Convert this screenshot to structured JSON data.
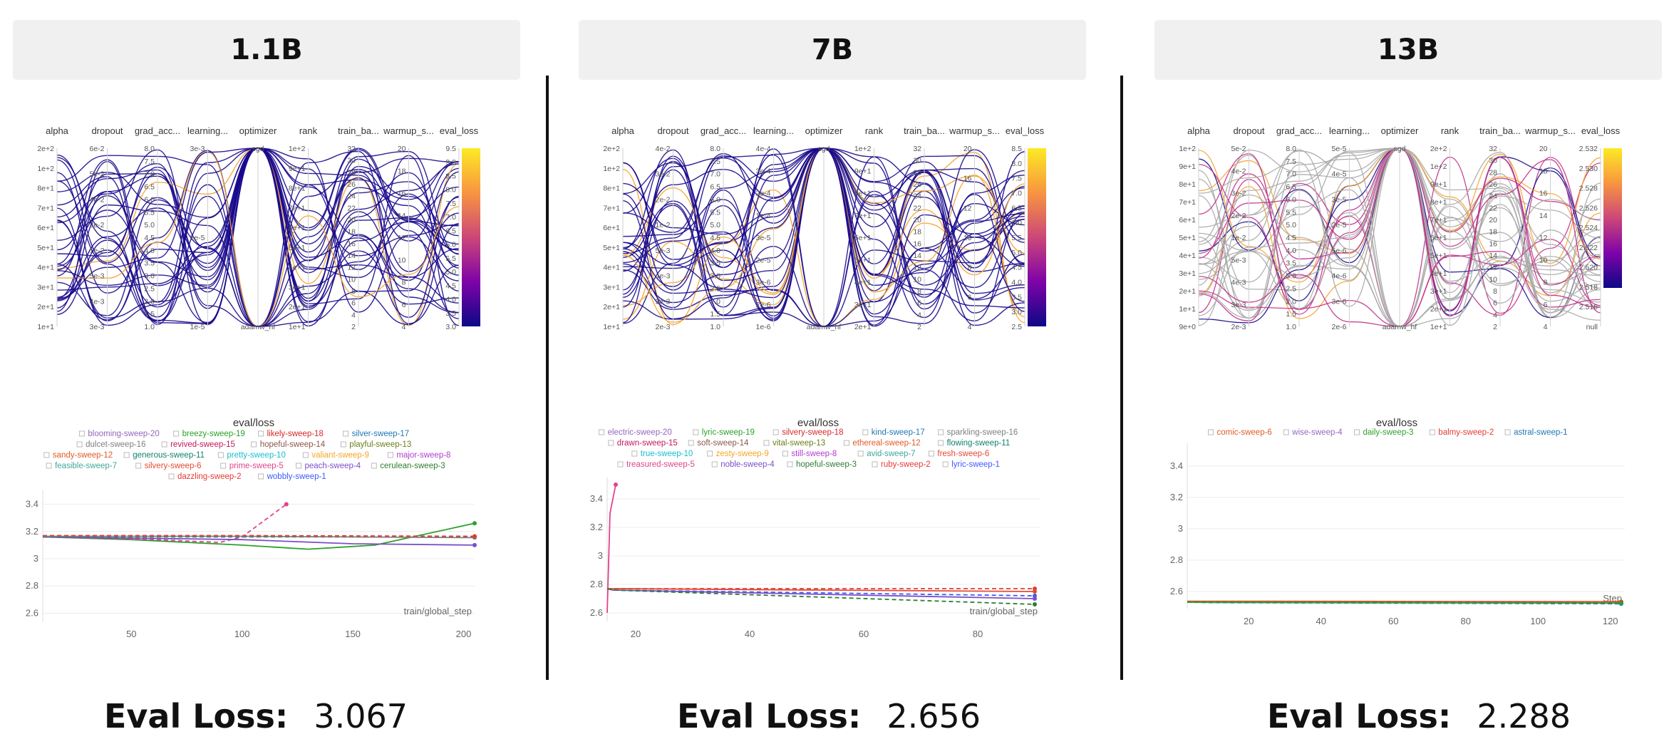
{
  "columns": [
    {
      "header": "1.1B",
      "eval_loss_label": "Eval Loss:",
      "eval_loss_value": "3.067"
    },
    {
      "header": "7B",
      "eval_loss_label": "Eval Loss:",
      "eval_loss_value": "2.656"
    },
    {
      "header": "13B",
      "eval_loss_label": "Eval Loss:",
      "eval_loss_value": "2.288"
    }
  ],
  "colors": {
    "line_dark": "#1a0a8c",
    "line_gray": "#a8a8a8",
    "line_orange": "#f5a431",
    "line_pink": "#c2308a",
    "colorbar": [
      "#fcea24",
      "#f89540",
      "#cc4778",
      "#7e03a8",
      "#0d0887"
    ]
  },
  "chart_data": [
    {
      "type": "parallel_coordinates",
      "panel": "1.1B",
      "axes": [
        {
          "name": "alpha",
          "ticks": [
            "2e+2",
            "1e+2",
            "8e+1",
            "7e+1",
            "6e+1",
            "5e+1",
            "4e+1",
            "3e+1",
            "2e+1",
            "1e+1"
          ]
        },
        {
          "name": "dropout",
          "ticks": [
            "6e-2",
            "5e-2",
            "4e-2",
            "2e-2",
            "1e-2",
            "5e-3",
            "4e-3",
            "3e-3"
          ]
        },
        {
          "name": "grad_acc...",
          "ticks": [
            "8.0",
            "7.5",
            "7.0",
            "6.5",
            "6.0",
            "5.5",
            "5.0",
            "4.5",
            "4.0",
            "3.5",
            "3.0",
            "2.5",
            "2.0",
            "1.5",
            "1.0"
          ]
        },
        {
          "name": "learning...",
          "ticks": [
            "3e-3",
            "2e-5",
            "1e-5"
          ]
        },
        {
          "name": "optimizer",
          "ticks": [
            "sgd",
            "adamw_hf"
          ]
        },
        {
          "name": "rank",
          "ticks": [
            "1e+2",
            "9e+1",
            "8e+1",
            "7e+1",
            "6e+1",
            "5e+1",
            "4e+1",
            "3e+1",
            "2e+1",
            "1e+1"
          ]
        },
        {
          "name": "train_ba...",
          "ticks": [
            "32",
            "30",
            "28",
            "26",
            "24",
            "22",
            "20",
            "18",
            "16",
            "14",
            "12",
            "10",
            "8",
            "6",
            "4",
            "2"
          ]
        },
        {
          "name": "warmup_s...",
          "ticks": [
            "20",
            "18",
            "16",
            "14",
            "12",
            "10",
            "8",
            "6",
            "4"
          ]
        },
        {
          "name": "eval_loss",
          "ticks": [
            "9.5",
            "9.0",
            "8.5",
            "8.0",
            "7.5",
            "7.0",
            "6.5",
            "6.0",
            "5.5",
            "5.0",
            "4.5",
            "4.0",
            "3.5",
            "3.0"
          ]
        }
      ],
      "colorbar_range": [
        3.0,
        9.5
      ]
    },
    {
      "type": "line",
      "panel": "1.1B",
      "title": "eval/loss",
      "xlabel": "train/global_step",
      "xticks": [
        50,
        100,
        150,
        200
      ],
      "yticks": [
        "3.4",
        "3.2",
        "3",
        "2.8",
        "2.6"
      ],
      "xlim": [
        10,
        205
      ],
      "ylim": [
        2.55,
        3.45
      ],
      "legend": [
        {
          "name": "blooming-sweep-20",
          "color": "#9467bd"
        },
        {
          "name": "breezy-sweep-19",
          "color": "#2ca02c"
        },
        {
          "name": "likely-sweep-18",
          "color": "#d62728"
        },
        {
          "name": "silver-sweep-17",
          "color": "#1f77b4"
        },
        {
          "name": "dulcet-sweep-16",
          "color": "#7f7f7f"
        },
        {
          "name": "revived-sweep-15",
          "color": "#c2185b"
        },
        {
          "name": "hopeful-sweep-14",
          "color": "#8c564b"
        },
        {
          "name": "playful-sweep-13",
          "color": "#6b7f1a"
        },
        {
          "name": "sandy-sweep-12",
          "color": "#e15b24"
        },
        {
          "name": "generous-sweep-11",
          "color": "#11806a"
        },
        {
          "name": "pretty-sweep-10",
          "color": "#17becf"
        },
        {
          "name": "valiant-sweep-9",
          "color": "#f5a623"
        },
        {
          "name": "major-sweep-8",
          "color": "#b23ccf"
        },
        {
          "name": "feasible-sweep-7",
          "color": "#3fa89a"
        },
        {
          "name": "silvery-sweep-6",
          "color": "#e34a33"
        },
        {
          "name": "prime-sweep-5",
          "color": "#e0448a"
        },
        {
          "name": "peach-sweep-4",
          "color": "#7b4fc9"
        },
        {
          "name": "cerulean-sweep-3",
          "color": "#2e7d32"
        },
        {
          "name": "dazzling-sweep-2",
          "color": "#e53935"
        },
        {
          "name": "wobbly-sweep-1",
          "color": "#3d5afe"
        }
      ],
      "series": [
        {
          "name": "breezy-sweep-19",
          "x": [
            10,
            50,
            100,
            130,
            160,
            205
          ],
          "y": [
            3.16,
            3.14,
            3.1,
            3.07,
            3.1,
            3.26
          ]
        },
        {
          "name": "prime-sweep-5",
          "x": [
            10,
            60,
            90,
            100,
            120
          ],
          "y": [
            3.16,
            3.14,
            3.12,
            3.16,
            3.4
          ]
        },
        {
          "name": "peach-sweep-4",
          "x": [
            10,
            100,
            150,
            205
          ],
          "y": [
            3.16,
            3.14,
            3.11,
            3.1
          ]
        },
        {
          "name": "generous-sweep-11",
          "x": [
            10,
            100,
            205
          ],
          "y": [
            3.16,
            3.16,
            3.16
          ]
        },
        {
          "name": "dulcet-sweep-16",
          "x": [
            10,
            100,
            205
          ],
          "y": [
            3.165,
            3.165,
            3.155
          ]
        },
        {
          "name": "dazzling-sweep-2",
          "x": [
            10,
            100,
            205
          ],
          "y": [
            3.17,
            3.17,
            3.165
          ]
        }
      ]
    },
    {
      "type": "parallel_coordinates",
      "panel": "7B",
      "axes": [
        {
          "name": "alpha",
          "ticks": [
            "2e+2",
            "1e+2",
            "8e+1",
            "7e+1",
            "6e+1",
            "5e+1",
            "4e+1",
            "3e+1",
            "2e+1",
            "1e+1"
          ]
        },
        {
          "name": "dropout",
          "ticks": [
            "4e-2",
            "3e-2",
            "2e-2",
            "1e-2",
            "5e-3",
            "4e-3",
            "3e-3",
            "2e-3"
          ]
        },
        {
          "name": "grad_acc...",
          "ticks": [
            "8.0",
            "7.5",
            "7.0",
            "6.5",
            "6.0",
            "5.5",
            "5.0",
            "4.5",
            "4.0",
            "3.5",
            "3.0",
            "2.5",
            "2.0",
            "1.5",
            "1.0"
          ]
        },
        {
          "name": "learning...",
          "ticks": [
            "4e-4",
            "3e-4",
            "2e-4",
            "1e-4",
            "3e-5",
            "2e-5",
            "3e-6",
            "2e-6",
            "1e-6"
          ]
        },
        {
          "name": "optimizer",
          "ticks": [
            "sgd",
            "adamw_hf"
          ]
        },
        {
          "name": "rank",
          "ticks": [
            "1e+2",
            "9e+1",
            "8e+1",
            "7e+1",
            "6e+1",
            "5e+1",
            "4e+1",
            "3e+1",
            "2e+1"
          ]
        },
        {
          "name": "train_ba...",
          "ticks": [
            "32",
            "30",
            "28",
            "26",
            "24",
            "22",
            "20",
            "18",
            "16",
            "14",
            "12",
            "10",
            "8",
            "6",
            "4",
            "2"
          ]
        },
        {
          "name": "warmup_s...",
          "ticks": [
            "20",
            "16",
            "12",
            "10",
            "8",
            "6",
            "4"
          ]
        },
        {
          "name": "eval_loss",
          "ticks": [
            "8.5",
            "8.0",
            "7.5",
            "7.0",
            "6.5",
            "6.0",
            "5.5",
            "5.0",
            "4.5",
            "4.0",
            "3.5",
            "3.0",
            "2.5"
          ]
        }
      ],
      "colorbar_range": [
        2.5,
        8.5
      ]
    },
    {
      "type": "line",
      "panel": "7B",
      "title": "eval/loss",
      "xlabel": "train/global_step",
      "xticks": [
        20,
        40,
        60,
        80
      ],
      "yticks": [
        "3.4",
        "3.2",
        "3",
        "2.8",
        "2.6"
      ],
      "xlim": [
        15,
        91
      ],
      "ylim": [
        2.55,
        3.5
      ],
      "legend": [
        {
          "name": "electric-sweep-20",
          "color": "#9467bd"
        },
        {
          "name": "lyric-sweep-19",
          "color": "#2ca02c"
        },
        {
          "name": "silvery-sweep-18",
          "color": "#d62728"
        },
        {
          "name": "kind-sweep-17",
          "color": "#1f77b4"
        },
        {
          "name": "sparkling-sweep-16",
          "color": "#7f7f7f"
        },
        {
          "name": "drawn-sweep-15",
          "color": "#c2185b"
        },
        {
          "name": "soft-sweep-14",
          "color": "#8c564b"
        },
        {
          "name": "vital-sweep-13",
          "color": "#6b7f1a"
        },
        {
          "name": "ethereal-sweep-12",
          "color": "#e15b24"
        },
        {
          "name": "flowing-sweep-11",
          "color": "#11806a"
        },
        {
          "name": "true-sweep-10",
          "color": "#17becf"
        },
        {
          "name": "zesty-sweep-9",
          "color": "#f5a623"
        },
        {
          "name": "still-sweep-8",
          "color": "#b23ccf"
        },
        {
          "name": "avid-sweep-7",
          "color": "#3fa89a"
        },
        {
          "name": "fresh-sweep-6",
          "color": "#e34a33"
        },
        {
          "name": "treasured-sweep-5",
          "color": "#e0448a"
        },
        {
          "name": "noble-sweep-4",
          "color": "#7b4fc9"
        },
        {
          "name": "hopeful-sweep-3",
          "color": "#2e7d32"
        },
        {
          "name": "ruby-sweep-2",
          "color": "#e53935"
        },
        {
          "name": "lyric-sweep-1",
          "color": "#3d5afe"
        }
      ],
      "series": [
        {
          "name": "treasured-sweep-5",
          "x": [
            15,
            15.5,
            16.5
          ],
          "y": [
            2.6,
            3.3,
            3.5
          ]
        },
        {
          "name": "ruby-sweep-2",
          "x": [
            15,
            16,
            90
          ],
          "y": [
            2.77,
            2.77,
            2.77
          ]
        },
        {
          "name": "fresh-sweep-6",
          "x": [
            15,
            16,
            90
          ],
          "y": [
            2.77,
            2.77,
            2.75
          ]
        },
        {
          "name": "lyric-sweep-1",
          "x": [
            15,
            16,
            90
          ],
          "y": [
            2.77,
            2.76,
            2.72
          ]
        },
        {
          "name": "noble-sweep-4",
          "x": [
            15,
            16,
            90
          ],
          "y": [
            2.77,
            2.76,
            2.7
          ]
        },
        {
          "name": "hopeful-sweep-3",
          "x": [
            15,
            16,
            90
          ],
          "y": [
            2.77,
            2.76,
            2.66
          ]
        }
      ]
    },
    {
      "type": "parallel_coordinates",
      "panel": "13B",
      "axes": [
        {
          "name": "alpha",
          "ticks": [
            "1e+2",
            "9e+1",
            "8e+1",
            "7e+1",
            "6e+1",
            "5e+1",
            "4e+1",
            "3e+1",
            "2e+1",
            "1e+1",
            "9e+0"
          ]
        },
        {
          "name": "dropout",
          "ticks": [
            "5e-2",
            "4e-2",
            "3e-2",
            "2e-2",
            "1e-2",
            "5e-3",
            "4e-3",
            "3e-3",
            "2e-3"
          ]
        },
        {
          "name": "grad_acc...",
          "ticks": [
            "8.0",
            "7.5",
            "7.0",
            "6.5",
            "6.0",
            "5.5",
            "5.0",
            "4.5",
            "4.0",
            "3.5",
            "3.0",
            "2.5",
            "2.0",
            "1.5",
            "1.0"
          ]
        },
        {
          "name": "learning...",
          "ticks": [
            "5e-5",
            "4e-5",
            "3e-5",
            "2e-5",
            "5e-6",
            "4e-6",
            "3e-6",
            "2e-6"
          ]
        },
        {
          "name": "optimizer",
          "ticks": [
            "sgd",
            "adamw_hf"
          ]
        },
        {
          "name": "rank",
          "ticks": [
            "2e+2",
            "1e+2",
            "9e+1",
            "8e+1",
            "7e+1",
            "6e+1",
            "5e+1",
            "4e+1",
            "3e+1",
            "2e+1",
            "1e+1"
          ]
        },
        {
          "name": "train_ba...",
          "ticks": [
            "32",
            "30",
            "28",
            "26",
            "24",
            "22",
            "20",
            "18",
            "16",
            "14",
            "12",
            "10",
            "8",
            "6",
            "4",
            "2"
          ]
        },
        {
          "name": "warmup_s...",
          "ticks": [
            "20",
            "18",
            "16",
            "14",
            "12",
            "10",
            "8",
            "6",
            "4"
          ]
        },
        {
          "name": "eval_loss",
          "ticks": [
            "2.532",
            "2.530",
            "2.528",
            "2.526",
            "2.524",
            "2.522",
            "2.520",
            "2.518",
            "2.516",
            "null"
          ]
        }
      ],
      "colorbar_range": [
        2.516,
        2.532
      ]
    },
    {
      "type": "line",
      "panel": "13B",
      "title": "eval/loss",
      "xlabel": "Step",
      "xticks": [
        20,
        40,
        60,
        80,
        100,
        120
      ],
      "yticks": [
        "3.4",
        "3.2",
        "3",
        "2.8",
        "2.6"
      ],
      "xlim": [
        3,
        124
      ],
      "ylim": [
        2.5,
        3.5
      ],
      "legend": [
        {
          "name": "comic-sweep-6",
          "color": "#e15b24"
        },
        {
          "name": "wise-sweep-4",
          "color": "#9467bd"
        },
        {
          "name": "daily-sweep-3",
          "color": "#2ca02c"
        },
        {
          "name": "balmy-sweep-2",
          "color": "#e53935"
        },
        {
          "name": "astral-sweep-1",
          "color": "#1f77b4"
        }
      ],
      "series": [
        {
          "name": "comic-sweep-6",
          "x": [
            3,
            16,
            123
          ],
          "y": [
            2.538,
            2.538,
            2.535
          ]
        },
        {
          "name": "balmy-sweep-2",
          "x": [
            3,
            60,
            123
          ],
          "y": [
            2.535,
            2.534,
            2.532
          ]
        },
        {
          "name": "wise-sweep-4",
          "x": [
            3,
            10,
            123
          ],
          "y": [
            2.532,
            2.53,
            2.525
          ]
        },
        {
          "name": "astral-sweep-1",
          "x": [
            3,
            10,
            123
          ],
          "y": [
            2.532,
            2.529,
            2.522
          ]
        },
        {
          "name": "daily-sweep-3",
          "x": [
            3,
            123
          ],
          "y": [
            2.532,
            2.527
          ]
        }
      ]
    }
  ]
}
